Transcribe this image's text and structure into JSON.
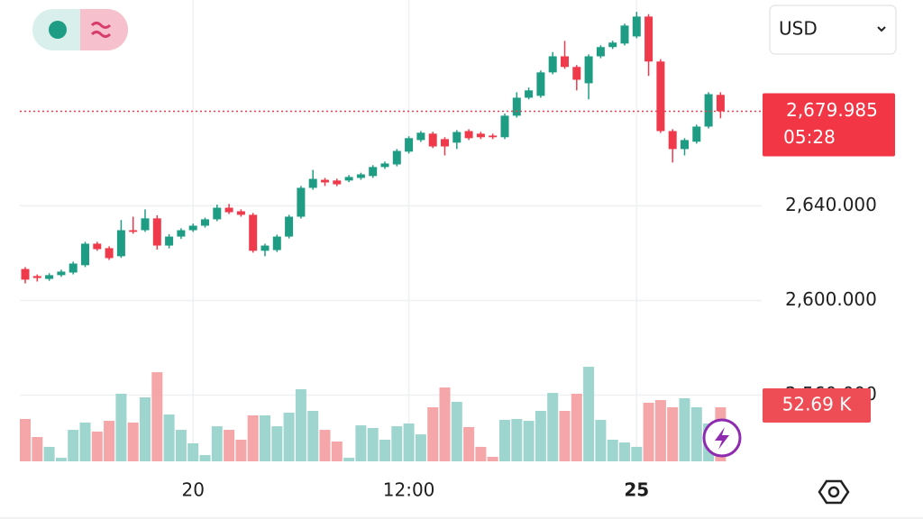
{
  "chart_data": {
    "type": "candlestick",
    "currency": "USD",
    "categories": [
      null,
      null,
      null,
      null,
      null,
      null,
      null,
      null,
      null,
      null,
      null,
      null,
      null,
      null,
      "20",
      null,
      null,
      null,
      null,
      null,
      null,
      null,
      null,
      null,
      null,
      null,
      null,
      null,
      null,
      null,
      null,
      null,
      "12:00",
      null,
      null,
      null,
      null,
      null,
      null,
      null,
      null,
      null,
      null,
      null,
      null,
      null,
      null,
      null,
      null,
      null,
      null,
      "25",
      null,
      null,
      null,
      null,
      null,
      null,
      null
    ],
    "open": [
      2613.3,
      2610.3,
      2609.1,
      2610.7,
      2611.8,
      2614.9,
      2624,
      2622.1,
      2618.7,
      2629.7,
      2629.7,
      2634.7,
      2623.2,
      2627,
      2629.7,
      2631.6,
      2634.3,
      2639.2,
      2637.7,
      2636.2,
      2621,
      2621.3,
      2627,
      2635.4,
      2647.6,
      2651,
      2650.7,
      2650.7,
      2651.8,
      2652.6,
      2656.4,
      2657.5,
      2662.9,
      2667.8,
      2670.5,
      2668.2,
      2666.7,
      2671.6,
      2670.5,
      2669.7,
      2669,
      2678.1,
      2685.7,
      2686.5,
      2696.4,
      2703.2,
      2698.7,
      2691.8,
      2703.2,
      2707.1,
      2708.6,
      2711.6,
      2720,
      2701,
      2671.6,
      2664,
      2667.1,
      2673.5,
      2686.9
    ],
    "high": [
      2614.1,
      2611,
      2611.5,
      2613,
      2616.4,
      2624.8,
      2624.8,
      2622.9,
      2634,
      2635.4,
      2638.5,
      2636,
      2628,
      2630.5,
      2632.5,
      2635,
      2640.5,
      2640.8,
      2638.5,
      2637,
      2624,
      2627.8,
      2636.2,
      2648.4,
      2655.2,
      2651.8,
      2651.5,
      2653,
      2654,
      2657.2,
      2658.7,
      2664,
      2669.4,
      2671.6,
      2671.3,
      2669,
      2672,
      2672.4,
      2671.3,
      2670.5,
      2679,
      2688,
      2690,
      2697.2,
      2705,
      2709.7,
      2699.5,
      2704,
      2707.9,
      2709.8,
      2717,
      2722,
      2721,
      2702,
      2672.4,
      2668.6,
      2674.3,
      2688,
      2688
    ],
    "low": [
      2607.2,
      2608,
      2608.3,
      2610,
      2611,
      2614.1,
      2621,
      2617.1,
      2618,
      2628.2,
      2629,
      2621.5,
      2622,
      2626,
      2629,
      2630.8,
      2633.5,
      2636.5,
      2635.4,
      2620.2,
      2618.7,
      2620.5,
      2626.2,
      2634.6,
      2646.8,
      2648.4,
      2648.3,
      2650,
      2651,
      2651.8,
      2655.6,
      2656.7,
      2662.1,
      2667,
      2664.4,
      2661.3,
      2664,
      2667.8,
      2668.2,
      2668.2,
      2668.2,
      2677.3,
      2685,
      2685.7,
      2695.6,
      2697.9,
      2688.8,
      2685,
      2702.4,
      2706.3,
      2707.8,
      2710.8,
      2694.9,
      2670.8,
      2658.3,
      2661.3,
      2666.3,
      2672.7,
      2677
    ],
    "close": [
      2608.8,
      2609.5,
      2610.7,
      2612.2,
      2615.6,
      2624,
      2621.7,
      2617.9,
      2629.7,
      2629,
      2634.7,
      2623.2,
      2627,
      2629.7,
      2631.6,
      2634.3,
      2639.2,
      2637.3,
      2636.2,
      2621,
      2623.2,
      2627,
      2635.4,
      2647.6,
      2651.4,
      2649.9,
      2649.1,
      2652.2,
      2653.3,
      2656.4,
      2657.9,
      2663.2,
      2668.6,
      2670.9,
      2665.1,
      2665.1,
      2671.2,
      2668.6,
      2669,
      2669,
      2678.1,
      2685.7,
      2688.8,
      2696.4,
      2703.2,
      2698.7,
      2693.3,
      2703.2,
      2707.1,
      2709,
      2716.2,
      2720,
      2701,
      2671.6,
      2664,
      2667.8,
      2673.5,
      2687.2,
      2679.985
    ],
    "volume": [
      41.3,
      23.7,
      14.1,
      3.5,
      30.7,
      37.8,
      29,
      39.5,
      65.9,
      37.8,
      62.4,
      86.9,
      45.7,
      30.7,
      17.6,
      6.1,
      34.2,
      30.7,
      21.1,
      44.8,
      44.8,
      34.2,
      47.4,
      70.3,
      49.2,
      30.7,
      19.3,
      3.5,
      35.1,
      32.5,
      21.1,
      34.2,
      36.9,
      26.3,
      52.7,
      72,
      58,
      33.4,
      14.1,
      4.4,
      40.4,
      41.3,
      39.5,
      49.2,
      66.7,
      49.2,
      65.9,
      92.2,
      40.4,
      21.1,
      18.4,
      14.1,
      57.1,
      59.7,
      52.7,
      61.5,
      52.7,
      36.9,
      52.69
    ],
    "ylim": [
      2532,
      2727
    ],
    "yticks": [
      {
        "value": 2560,
        "label": "2,560.000"
      },
      {
        "value": 2600,
        "label": "2,600.000"
      },
      {
        "value": 2640,
        "label": "2,640.000"
      }
    ],
    "volume_lim": [
      0,
      200
    ],
    "last_price": {
      "value": 2679.985,
      "label": "2,679.985"
    },
    "countdown": "05:28",
    "last_volume": {
      "value": 52.69,
      "label": "52.69 K"
    },
    "up_color": "#1f9c84",
    "down_color": "#ef3a4b",
    "volume_up_color": "#9ed6cf",
    "volume_down_color": "#f4a6a8",
    "grid": true
  }
}
